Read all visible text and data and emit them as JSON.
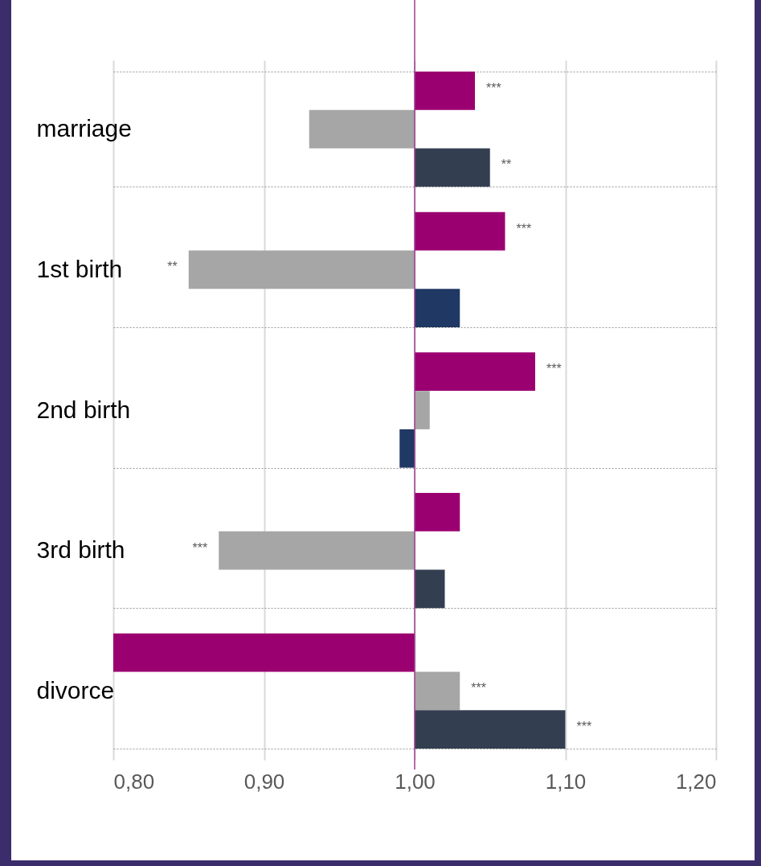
{
  "chart_data": {
    "type": "bar",
    "orientation": "horizontal",
    "categories": [
      "marriage",
      "1st birth",
      "2nd birth",
      "3rd birth",
      "divorce"
    ],
    "series": [
      {
        "color": "#9b0070",
        "base": [
          1,
          1,
          1,
          1,
          1
        ],
        "values": [
          0.04,
          0.06,
          0.08,
          0.03,
          -0.2
        ],
        "value_labels": [
          "***",
          "***",
          "***",
          null,
          null
        ]
      },
      {
        "color": "#a6a6a6",
        "base": [
          1,
          1,
          1,
          1,
          1
        ],
        "values": [
          -0.07,
          -0.15,
          0.01,
          -0.13,
          0.03
        ],
        "value_labels": [
          null,
          "**",
          null,
          "***",
          "***"
        ]
      },
      {
        "colors": [
          "#333f50",
          "#1f3864",
          "#1f3864",
          "#333f50",
          "#333f50"
        ],
        "base": [
          1,
          1,
          1,
          1,
          1
        ],
        "values": [
          0.05,
          0.03,
          -0.01,
          0.02,
          0.1
        ],
        "value_labels": [
          "**",
          null,
          null,
          null,
          "***"
        ]
      }
    ],
    "xlim": [
      0.8,
      1.2
    ],
    "xticks": [
      {
        "value": 0.8,
        "label": "0,80"
      },
      {
        "value": 0.9,
        "label": "0,90"
      },
      {
        "value": 1.0,
        "label": "1,00"
      },
      {
        "value": 1.1,
        "label": "1,10"
      },
      {
        "value": 1.2,
        "label": "1,20"
      }
    ],
    "ref_lines": [
      {
        "axis": "x",
        "value": 1.0,
        "color": "#9b3d8f"
      }
    ],
    "grid": true
  }
}
